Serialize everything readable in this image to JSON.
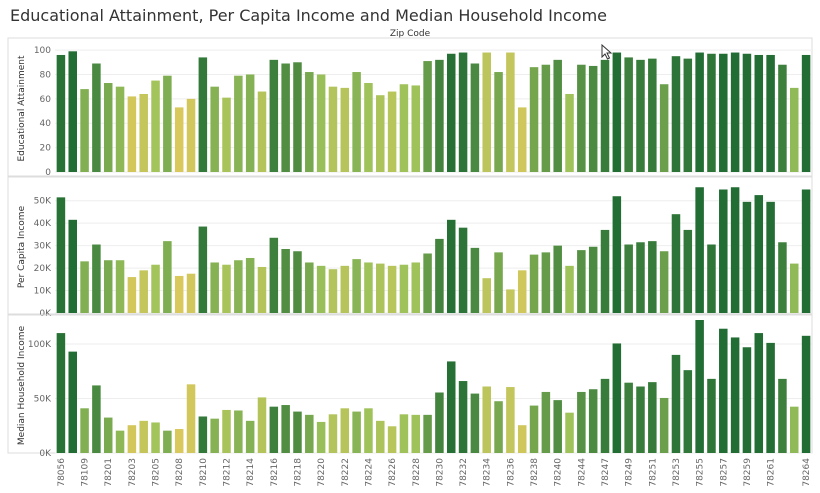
{
  "title": "Educational Attainment, Per Capita Income and Median Household Income",
  "x_header": "Zip Code",
  "colors": {
    "low": "#e8c95c",
    "mid": "#9dc25b",
    "high": "#1f6b33",
    "grid": "#eeeeee",
    "border": "#dddddd"
  },
  "chart_data": [
    {
      "type": "bar",
      "ylabel": "Educational Attainment",
      "ylim": [
        0,
        105
      ],
      "ticks": [
        0,
        20,
        40,
        60,
        80,
        100
      ],
      "tick_labels": [
        "0",
        "20",
        "40",
        "60",
        "80",
        "100"
      ],
      "values": [
        96,
        99,
        68,
        89,
        73,
        70,
        62,
        64,
        75,
        79,
        53,
        60,
        94,
        70,
        61,
        79,
        80,
        66,
        92,
        89,
        90,
        82,
        80,
        70,
        69,
        82,
        73,
        63,
        66,
        72,
        71,
        91,
        92,
        97,
        98,
        89,
        98,
        82,
        98,
        53,
        86,
        88,
        92,
        64,
        88,
        87,
        92,
        98,
        94,
        92,
        93,
        72,
        95,
        93,
        98,
        97,
        97,
        98,
        97,
        96,
        96,
        88,
        69,
        96
      ]
    },
    {
      "type": "bar",
      "ylabel": "Per Capita Income",
      "ylim": [
        0,
        57000
      ],
      "ticks": [
        0,
        10000,
        20000,
        30000,
        40000,
        50000
      ],
      "tick_labels": [
        "0K",
        "10K",
        "20K",
        "30K",
        "40K",
        "50K"
      ],
      "values": [
        51500,
        41500,
        23000,
        30500,
        23500,
        23500,
        16000,
        19000,
        21500,
        32000,
        16500,
        17500,
        38500,
        22500,
        21500,
        23500,
        24500,
        20500,
        33500,
        28500,
        27500,
        22500,
        21000,
        19500,
        21000,
        24000,
        22500,
        22000,
        21000,
        21500,
        22500,
        26500,
        33000,
        41500,
        38000,
        29000,
        15500,
        27000,
        10500,
        19000,
        26000,
        27000,
        30000,
        21000,
        28000,
        29500,
        37000,
        52000,
        30500,
        31500,
        32000,
        27500,
        44000,
        37000,
        56000,
        30500,
        55000,
        56000,
        49500,
        52500,
        49500,
        31500,
        22000,
        55000
      ]
    },
    {
      "type": "bar",
      "ylabel": "Median Household Income",
      "ylim": [
        0,
        122000
      ],
      "ticks": [
        0,
        50000,
        100000
      ],
      "tick_labels": [
        "0K",
        "50K",
        "100K"
      ],
      "values": [
        110000,
        93000,
        41000,
        62000,
        32500,
        20500,
        25500,
        29500,
        28000,
        20500,
        22000,
        63000,
        33500,
        31500,
        39500,
        39000,
        29500,
        51000,
        42500,
        44000,
        38000,
        35000,
        28500,
        35500,
        41000,
        38000,
        41000,
        29500,
        24500,
        35500,
        35000,
        35000,
        55500,
        84000,
        66000,
        54500,
        61000,
        47500,
        60500,
        25500,
        43500,
        56000,
        48500,
        37000,
        56000,
        58500,
        68000,
        100500,
        64500,
        61000,
        65000,
        50500,
        90000,
        76000,
        122000,
        68000,
        114000,
        106000,
        97000,
        110000,
        101000,
        68000,
        42500,
        107500
      ]
    }
  ],
  "shared_colors": [
    0.96,
    0.99,
    0.61,
    0.83,
    0.64,
    0.56,
    0.14,
    0.24,
    0.46,
    0.62,
    0.1,
    0.15,
    0.92,
    0.59,
    0.42,
    0.58,
    0.6,
    0.35,
    0.88,
    0.8,
    0.81,
    0.65,
    0.52,
    0.36,
    0.33,
    0.58,
    0.49,
    0.4,
    0.32,
    0.48,
    0.48,
    0.72,
    0.86,
    0.97,
    0.95,
    0.83,
    0.3,
    0.65,
    0.25,
    0.17,
    0.66,
    0.72,
    0.8,
    0.48,
    0.78,
    0.82,
    0.9,
    0.99,
    0.88,
    0.9,
    0.91,
    0.7,
    0.95,
    0.93,
    0.99,
    0.94,
    0.99,
    0.99,
    0.98,
    0.99,
    0.98,
    0.88,
    0.55,
    0.99
  ],
  "zip_labels": [
    "78056",
    "78109",
    "78201",
    "78203",
    "78205",
    "78208",
    "78210",
    "78212",
    "78214",
    "78216",
    "78218",
    "78220",
    "78222",
    "78224",
    "78226",
    "78228",
    "78230",
    "78232",
    "78234",
    "78236",
    "78238",
    "78240",
    "78244",
    "78247",
    "78249",
    "78251",
    "78253",
    "78255",
    "78257",
    "78259",
    "78261",
    "78264"
  ],
  "zip_label_bars": [
    0,
    2,
    4,
    6,
    8,
    10,
    12,
    14,
    16,
    18,
    20,
    22,
    24,
    26,
    28,
    30,
    32,
    34,
    36,
    38,
    40,
    42,
    44,
    46,
    48,
    50,
    52,
    54,
    56,
    58,
    60,
    63
  ]
}
